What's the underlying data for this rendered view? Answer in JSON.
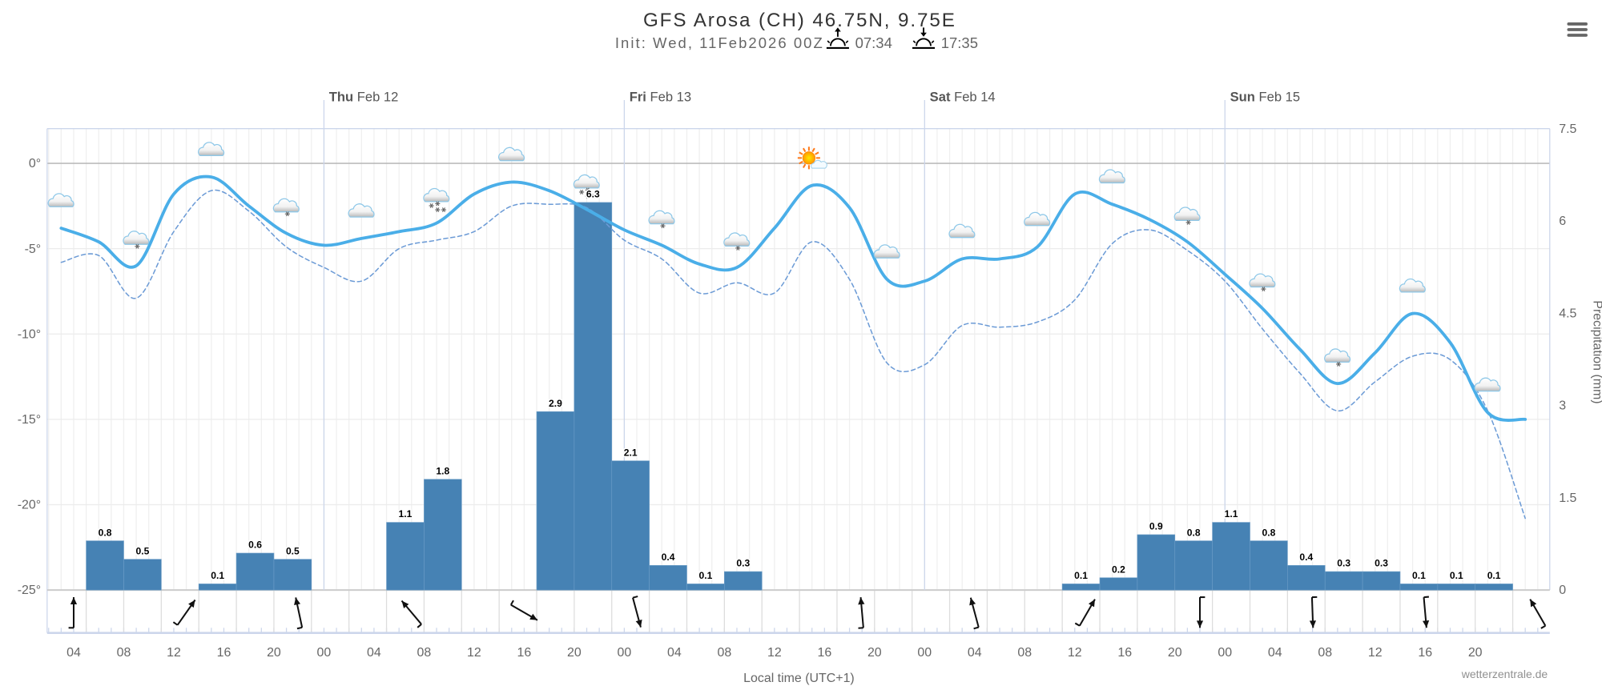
{
  "header": {
    "title": "GFS Arosa (CH) 46.75N, 9.75E",
    "init": "Init: Wed, 11Feb2026 00Z",
    "sunrise": "07:34",
    "sunset": "17:35",
    "sunrise_icon": "sunrise-icon",
    "sunset_icon": "sunset-icon",
    "menu_icon": "hamburger-menu-icon"
  },
  "credit": "wetterzentrale.de",
  "chart_data": {
    "type": "line+bar",
    "xlabel": "Local time (UTC+1)",
    "ylabel_right": "Precipitation (mm)",
    "ylim_left": [
      -25,
      0
    ],
    "ylim_right": [
      0,
      7.5
    ],
    "left_ticks": [
      {
        "value": 0,
        "label": "0°"
      },
      {
        "value": -5,
        "label": "-5°"
      },
      {
        "value": -10,
        "label": "-10°"
      },
      {
        "value": -15,
        "label": "-15°"
      },
      {
        "value": -20,
        "label": "-20°"
      },
      {
        "value": -25,
        "label": "-25°"
      }
    ],
    "right_ticks": [
      "0",
      "1.5",
      "3",
      "4.5",
      "6",
      "7.5"
    ],
    "x_tick_labels": [
      "04",
      "08",
      "12",
      "16",
      "20",
      "00",
      "04",
      "08",
      "12",
      "16",
      "20",
      "00",
      "04",
      "08",
      "12",
      "16",
      "20",
      "00",
      "04",
      "08",
      "12",
      "16",
      "20",
      "00",
      "04",
      "08",
      "12",
      "16",
      "20"
    ],
    "x_tick_times": [
      "2026-02-11 04:00",
      "2026-02-11 08:00",
      "2026-02-11 12:00",
      "2026-02-11 16:00",
      "2026-02-11 20:00",
      "2026-02-12 00:00",
      "2026-02-12 04:00",
      "2026-02-12 08:00",
      "2026-02-12 12:00",
      "2026-02-12 16:00",
      "2026-02-12 20:00",
      "2026-02-13 00:00",
      "2026-02-13 04:00",
      "2026-02-13 08:00",
      "2026-02-13 12:00",
      "2026-02-13 16:00",
      "2026-02-13 20:00",
      "2026-02-14 00:00",
      "2026-02-14 04:00",
      "2026-02-14 08:00",
      "2026-02-14 12:00",
      "2026-02-14 16:00",
      "2026-02-14 20:00",
      "2026-02-15 00:00",
      "2026-02-15 04:00",
      "2026-02-15 08:00",
      "2026-02-15 12:00",
      "2026-02-15 16:00",
      "2026-02-15 20:00"
    ],
    "days": [
      {
        "weekday": "Thu",
        "date": "Feb 12",
        "time": "2026-02-12 00:00"
      },
      {
        "weekday": "Fri",
        "date": "Feb 13",
        "time": "2026-02-13 00:00"
      },
      {
        "weekday": "Sat",
        "date": "Feb 14",
        "time": "2026-02-14 00:00"
      },
      {
        "weekday": "Sun",
        "date": "Feb 15",
        "time": "2026-02-15 00:00"
      }
    ],
    "x": [
      "2026-02-11 03:00",
      "2026-02-11 06:00",
      "2026-02-11 09:00",
      "2026-02-11 12:00",
      "2026-02-11 15:00",
      "2026-02-11 18:00",
      "2026-02-11 21:00",
      "2026-02-12 00:00",
      "2026-02-12 03:00",
      "2026-02-12 06:00",
      "2026-02-12 09:00",
      "2026-02-12 12:00",
      "2026-02-12 15:00",
      "2026-02-12 18:00",
      "2026-02-12 21:00",
      "2026-02-13 00:00",
      "2026-02-13 03:00",
      "2026-02-13 06:00",
      "2026-02-13 09:00",
      "2026-02-13 12:00",
      "2026-02-13 15:00",
      "2026-02-13 18:00",
      "2026-02-13 21:00",
      "2026-02-14 00:00",
      "2026-02-14 03:00",
      "2026-02-14 06:00",
      "2026-02-14 09:00",
      "2026-02-14 12:00",
      "2026-02-14 15:00",
      "2026-02-14 18:00",
      "2026-02-14 21:00",
      "2026-02-15 00:00",
      "2026-02-15 03:00",
      "2026-02-15 06:00",
      "2026-02-15 09:00",
      "2026-02-15 12:00",
      "2026-02-15 15:00",
      "2026-02-15 18:00",
      "2026-02-15 21:00",
      "2026-02-16 00:00"
    ],
    "series": [
      {
        "style": "solid",
        "color": "#4aaee8",
        "axis": "left",
        "values": [
          -3.8,
          -4.6,
          -6.0,
          -1.8,
          -0.8,
          -2.5,
          -4.1,
          -4.8,
          -4.4,
          -4.0,
          -3.5,
          -1.8,
          -1.1,
          -1.6,
          -2.7,
          -3.9,
          -4.8,
          -5.9,
          -6.1,
          -3.8,
          -1.3,
          -2.6,
          -6.8,
          -6.9,
          -5.6,
          -5.6,
          -4.9,
          -1.8,
          -2.4,
          -3.3,
          -4.6,
          -6.5,
          -8.5,
          -10.9,
          -12.9,
          -11.1,
          -8.8,
          -10.5,
          -14.6,
          -15.0
        ]
      },
      {
        "style": "dashed",
        "color": "#6c9bd6",
        "axis": "left",
        "values": [
          -5.8,
          -5.4,
          -7.9,
          -4.0,
          -1.6,
          -2.8,
          -4.9,
          -6.1,
          -6.9,
          -5.0,
          -4.5,
          -4.0,
          -2.5,
          -2.4,
          -2.6,
          -4.5,
          -5.6,
          -7.6,
          -7.0,
          -7.6,
          -4.6,
          -6.8,
          -11.7,
          -11.8,
          -9.5,
          -9.6,
          -9.3,
          -8.0,
          -4.7,
          -3.9,
          -5.1,
          -6.9,
          -9.7,
          -12.3,
          -14.5,
          -12.8,
          -11.3,
          -11.5,
          -14.5,
          -20.8
        ]
      }
    ],
    "precipitation": {
      "color": "#4682b4",
      "period_hours": 3,
      "start_times": [
        "2026-02-11 05:00",
        "2026-02-11 08:00",
        "2026-02-11 11:00",
        "2026-02-11 14:00",
        "2026-02-11 17:00",
        "2026-02-11 20:00",
        "2026-02-11 23:00",
        "2026-02-12 02:00",
        "2026-02-12 05:00",
        "2026-02-12 08:00",
        "2026-02-12 11:00",
        "2026-02-12 14:00",
        "2026-02-12 17:00",
        "2026-02-12 20:00",
        "2026-02-12 23:00",
        "2026-02-13 02:00",
        "2026-02-13 05:00",
        "2026-02-13 08:00",
        "2026-02-13 11:00",
        "2026-02-13 14:00",
        "2026-02-13 17:00",
        "2026-02-13 20:00",
        "2026-02-13 23:00",
        "2026-02-14 02:00",
        "2026-02-14 05:00",
        "2026-02-14 08:00",
        "2026-02-14 11:00",
        "2026-02-14 14:00",
        "2026-02-14 17:00",
        "2026-02-14 20:00",
        "2026-02-14 23:00",
        "2026-02-15 02:00",
        "2026-02-15 05:00",
        "2026-02-15 08:00",
        "2026-02-15 11:00",
        "2026-02-15 14:00",
        "2026-02-15 17:00",
        "2026-02-15 20:00"
      ],
      "values": [
        0.8,
        0.5,
        0,
        0.1,
        0.6,
        0.5,
        0,
        0,
        1.1,
        1.8,
        0,
        0,
        2.9,
        6.3,
        2.1,
        0.4,
        0.1,
        0.3,
        0,
        0,
        0,
        0,
        0,
        0,
        0,
        0,
        0.1,
        0.2,
        0.9,
        0.8,
        1.1,
        0.8,
        0.4,
        0.3,
        0.3,
        0.1,
        0.1,
        0.1
      ]
    },
    "weather_icons": {
      "times": [
        "2026-02-11 03:00",
        "2026-02-11 09:00",
        "2026-02-11 15:00",
        "2026-02-11 21:00",
        "2026-02-12 03:00",
        "2026-02-12 09:00",
        "2026-02-12 15:00",
        "2026-02-12 21:00",
        "2026-02-13 03:00",
        "2026-02-13 09:00",
        "2026-02-13 15:00",
        "2026-02-13 21:00",
        "2026-02-14 03:00",
        "2026-02-14 09:00",
        "2026-02-14 15:00",
        "2026-02-14 21:00",
        "2026-02-15 03:00",
        "2026-02-15 09:00",
        "2026-02-15 15:00",
        "2026-02-15 21:00"
      ],
      "icons": [
        "cloud",
        "cloud-light-snow",
        "cloud",
        "cloud-light-snow",
        "cloud",
        "cloud-snow",
        "cloud",
        "cloud-snow",
        "cloud-light-snow",
        "cloud-light-snow",
        "sun-cloud",
        "cloud",
        "cloud",
        "cloud",
        "cloud",
        "cloud-light-snow",
        "cloud-light-snow",
        "cloud-light-snow",
        "cloud",
        "cloud"
      ]
    },
    "wind": {
      "times": [
        "2026-02-11 04:00",
        "2026-02-11 13:00",
        "2026-02-11 22:00",
        "2026-02-12 07:00",
        "2026-02-12 16:00",
        "2026-02-13 01:00",
        "2026-02-13 19:00",
        "2026-02-14 04:00",
        "2026-02-14 13:00",
        "2026-02-14 22:00",
        "2026-02-15 07:00",
        "2026-02-15 16:00",
        "2026-02-16 01:00"
      ],
      "arrow_bearing_deg": [
        0,
        35,
        348,
        320,
        120,
        165,
        355,
        345,
        30,
        180,
        178,
        175,
        330
      ]
    }
  }
}
